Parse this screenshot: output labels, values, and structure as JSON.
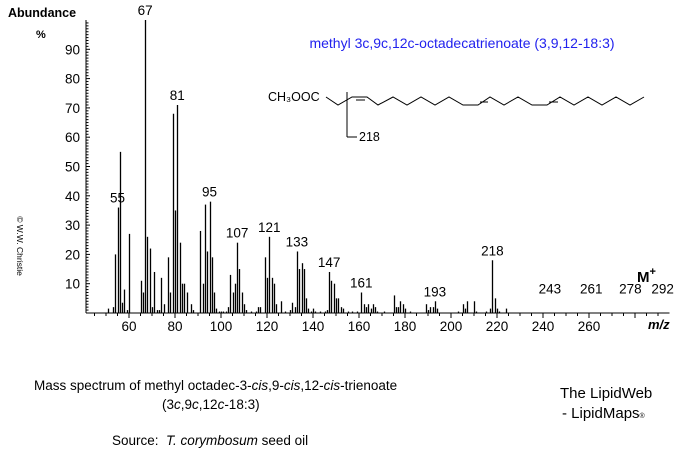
{
  "chart_data": {
    "type": "bar",
    "title": "methyl 3c,9c,12c-octadecatrienoate (3,9,12-18:3)",
    "xlabel": "m/z",
    "ylabel": "Abundance %",
    "xlim": [
      40,
      295
    ],
    "ylim": [
      0,
      100
    ],
    "xticks": [
      60,
      80,
      100,
      120,
      140,
      160,
      180,
      200,
      220,
      240,
      260
    ],
    "yticks": [
      10,
      20,
      30,
      40,
      50,
      60,
      70,
      80,
      90
    ],
    "grid": false,
    "peaks": [
      {
        "mz": 51,
        "y": 1.5
      },
      {
        "mz": 53,
        "y": 2
      },
      {
        "mz": 54,
        "y": 20
      },
      {
        "mz": 55,
        "y": 36
      },
      {
        "mz": 56,
        "y": 55
      },
      {
        "mz": 57,
        "y": 3.5
      },
      {
        "mz": 58,
        "y": 8
      },
      {
        "mz": 59,
        "y": 1
      },
      {
        "mz": 60,
        "y": 27
      },
      {
        "mz": 65,
        "y": 11
      },
      {
        "mz": 66,
        "y": 7
      },
      {
        "mz": 67,
        "y": 100
      },
      {
        "mz": 68,
        "y": 26
      },
      {
        "mz": 69,
        "y": 22
      },
      {
        "mz": 70,
        "y": 2
      },
      {
        "mz": 71,
        "y": 14
      },
      {
        "mz": 72,
        "y": 1
      },
      {
        "mz": 73,
        "y": 1
      },
      {
        "mz": 74,
        "y": 12
      },
      {
        "mz": 75,
        "y": 3
      },
      {
        "mz": 77,
        "y": 19
      },
      {
        "mz": 78,
        "y": 7
      },
      {
        "mz": 79,
        "y": 68
      },
      {
        "mz": 80,
        "y": 35
      },
      {
        "mz": 81,
        "y": 71
      },
      {
        "mz": 82,
        "y": 24
      },
      {
        "mz": 83,
        "y": 10
      },
      {
        "mz": 84,
        "y": 10
      },
      {
        "mz": 85,
        "y": 7
      },
      {
        "mz": 87,
        "y": 3
      },
      {
        "mz": 88,
        "y": 1
      },
      {
        "mz": 91,
        "y": 28
      },
      {
        "mz": 92,
        "y": 10
      },
      {
        "mz": 93,
        "y": 37
      },
      {
        "mz": 94,
        "y": 21
      },
      {
        "mz": 95,
        "y": 38
      },
      {
        "mz": 96,
        "y": 19
      },
      {
        "mz": 97,
        "y": 7
      },
      {
        "mz": 98,
        "y": 1.5
      },
      {
        "mz": 99,
        "y": 0.5
      },
      {
        "mz": 100,
        "y": 0.5
      },
      {
        "mz": 101,
        "y": 0.5
      },
      {
        "mz": 102,
        "y": 0.5
      },
      {
        "mz": 103,
        "y": 2
      },
      {
        "mz": 104,
        "y": 13
      },
      {
        "mz": 105,
        "y": 7
      },
      {
        "mz": 106,
        "y": 10
      },
      {
        "mz": 107,
        "y": 24
      },
      {
        "mz": 108,
        "y": 15
      },
      {
        "mz": 109,
        "y": 7
      },
      {
        "mz": 110,
        "y": 3
      },
      {
        "mz": 111,
        "y": 1
      },
      {
        "mz": 113,
        "y": 0.5
      },
      {
        "mz": 115,
        "y": 0.5
      },
      {
        "mz": 116,
        "y": 2
      },
      {
        "mz": 117,
        "y": 2
      },
      {
        "mz": 119,
        "y": 19
      },
      {
        "mz": 120,
        "y": 12
      },
      {
        "mz": 121,
        "y": 26
      },
      {
        "mz": 122,
        "y": 12
      },
      {
        "mz": 123,
        "y": 10
      },
      {
        "mz": 124,
        "y": 3
      },
      {
        "mz": 126,
        "y": 4
      },
      {
        "mz": 128,
        "y": 0.5
      },
      {
        "mz": 130,
        "y": 1
      },
      {
        "mz": 131,
        "y": 3.5
      },
      {
        "mz": 132,
        "y": 2
      },
      {
        "mz": 133,
        "y": 21
      },
      {
        "mz": 134,
        "y": 15
      },
      {
        "mz": 135,
        "y": 17
      },
      {
        "mz": 136,
        "y": 15
      },
      {
        "mz": 137,
        "y": 5
      },
      {
        "mz": 138,
        "y": 1.5
      },
      {
        "mz": 139,
        "y": 0.5
      },
      {
        "mz": 140,
        "y": 1.5
      },
      {
        "mz": 141,
        "y": 0.5
      },
      {
        "mz": 143,
        "y": 0.5
      },
      {
        "mz": 145,
        "y": 0.5
      },
      {
        "mz": 146,
        "y": 1
      },
      {
        "mz": 147,
        "y": 14
      },
      {
        "mz": 148,
        "y": 11
      },
      {
        "mz": 149,
        "y": 10
      },
      {
        "mz": 150,
        "y": 5
      },
      {
        "mz": 151,
        "y": 5
      },
      {
        "mz": 152,
        "y": 2
      },
      {
        "mz": 153,
        "y": 1.5
      },
      {
        "mz": 155,
        "y": 0.5
      },
      {
        "mz": 157,
        "y": 0.5
      },
      {
        "mz": 159,
        "y": 0.5
      },
      {
        "mz": 161,
        "y": 7
      },
      {
        "mz": 162,
        "y": 3
      },
      {
        "mz": 163,
        "y": 2
      },
      {
        "mz": 164,
        "y": 3
      },
      {
        "mz": 165,
        "y": 1.5
      },
      {
        "mz": 166,
        "y": 3
      },
      {
        "mz": 167,
        "y": 2
      },
      {
        "mz": 168,
        "y": 0.5
      },
      {
        "mz": 171,
        "y": 0.5
      },
      {
        "mz": 175,
        "y": 6
      },
      {
        "mz": 176,
        "y": 2
      },
      {
        "mz": 177,
        "y": 2
      },
      {
        "mz": 178,
        "y": 4
      },
      {
        "mz": 179,
        "y": 3
      },
      {
        "mz": 180,
        "y": 1.5
      },
      {
        "mz": 182,
        "y": 0.5
      },
      {
        "mz": 189,
        "y": 3
      },
      {
        "mz": 190,
        "y": 1
      },
      {
        "mz": 191,
        "y": 2
      },
      {
        "mz": 192,
        "y": 2
      },
      {
        "mz": 193,
        "y": 4
      },
      {
        "mz": 194,
        "y": 1.5
      },
      {
        "mz": 203,
        "y": 0.5
      },
      {
        "mz": 205,
        "y": 3
      },
      {
        "mz": 206,
        "y": 1.5
      },
      {
        "mz": 207,
        "y": 4
      },
      {
        "mz": 210,
        "y": 4
      },
      {
        "mz": 211,
        "y": 0.5
      },
      {
        "mz": 215,
        "y": 0.5
      },
      {
        "mz": 217,
        "y": 1.5
      },
      {
        "mz": 218,
        "y": 18
      },
      {
        "mz": 219,
        "y": 5
      },
      {
        "mz": 220,
        "y": 1.5
      },
      {
        "mz": 221,
        "y": 0.5
      },
      {
        "mz": 224,
        "y": 1.5
      }
    ],
    "peak_labels": [
      {
        "mz": 55,
        "text": "55"
      },
      {
        "mz": 67,
        "text": "67"
      },
      {
        "mz": 81,
        "text": "81"
      },
      {
        "mz": 95,
        "text": "95"
      },
      {
        "mz": 107,
        "text": "107"
      },
      {
        "mz": 121,
        "text": "121"
      },
      {
        "mz": 133,
        "text": "133"
      },
      {
        "mz": 147,
        "text": "147"
      },
      {
        "mz": 161,
        "text": "161"
      },
      {
        "mz": 193,
        "text": "193"
      },
      {
        "mz": 218,
        "text": "218"
      },
      {
        "mz": 243,
        "text": "243",
        "y": 5
      },
      {
        "mz": 261,
        "text": "261",
        "y": 5
      },
      {
        "mz": 278,
        "text": "278",
        "y": 5
      },
      {
        "mz": 292,
        "text": "292",
        "y": 5
      }
    ],
    "annotations": [
      "M+"
    ]
  },
  "axis": {
    "y_title": "Abundance",
    "y_unit": "%",
    "x_title": "m/z",
    "molecular_ion_label": "M",
    "molecular_ion_sup": "+"
  },
  "structure": {
    "formula_prefix": "CH₃OOC",
    "fragment_label": "218"
  },
  "copyright": "© W.W. Christie",
  "caption": {
    "line1_a": "Mass spectrum of methyl octadec-3-",
    "cis1": "cis",
    "line1_b": ",9-",
    "cis2": "cis",
    "line1_c": ",12-",
    "cis3": "cis",
    "line1_d": "-trienoate",
    "line2_a": "(3",
    "c1": "c",
    "line2_b": ",9",
    "c2": "c",
    "line2_c": ",12",
    "c3": "c",
    "line2_d": "-18:3)",
    "source_label": "Source:",
    "source_species": "T. corymbosum",
    "source_rest": " seed oil"
  },
  "brand": {
    "line1": "The LipidWeb",
    "line2": "- LipidMaps",
    "mark": "®"
  },
  "colors": {
    "title": "#2222ee",
    "ink": "#000000"
  }
}
